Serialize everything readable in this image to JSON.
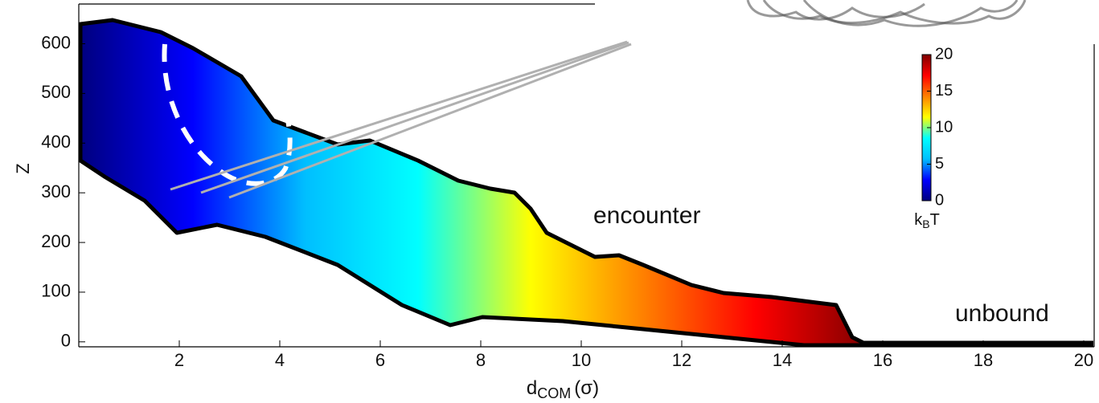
{
  "chart_data": {
    "type": "contour",
    "x_label": {
      "main": "d",
      "sub": "COM",
      "unit": "(σ)"
    },
    "y_label": "Z",
    "xlim": [
      0,
      20.2
    ],
    "xticks": [
      2,
      4,
      6,
      8,
      10,
      12,
      14,
      16,
      18,
      20
    ],
    "ylim": [
      -10,
      680
    ],
    "yticks": [
      0,
      100,
      200,
      300,
      400,
      500,
      600
    ],
    "colorbar": {
      "label": {
        "main": "k",
        "sub": "B",
        "unit": "T"
      },
      "lim": [
        0,
        20
      ],
      "ticks": [
        0,
        5,
        10,
        15,
        20
      ],
      "colormap": [
        "#00007f",
        "#0000ff",
        "#00bfff",
        "#00ffff",
        "#ffff00",
        "#ff8000",
        "#ff0000",
        "#7f0000"
      ]
    },
    "annotations": [
      "encounter",
      "unbound"
    ]
  }
}
